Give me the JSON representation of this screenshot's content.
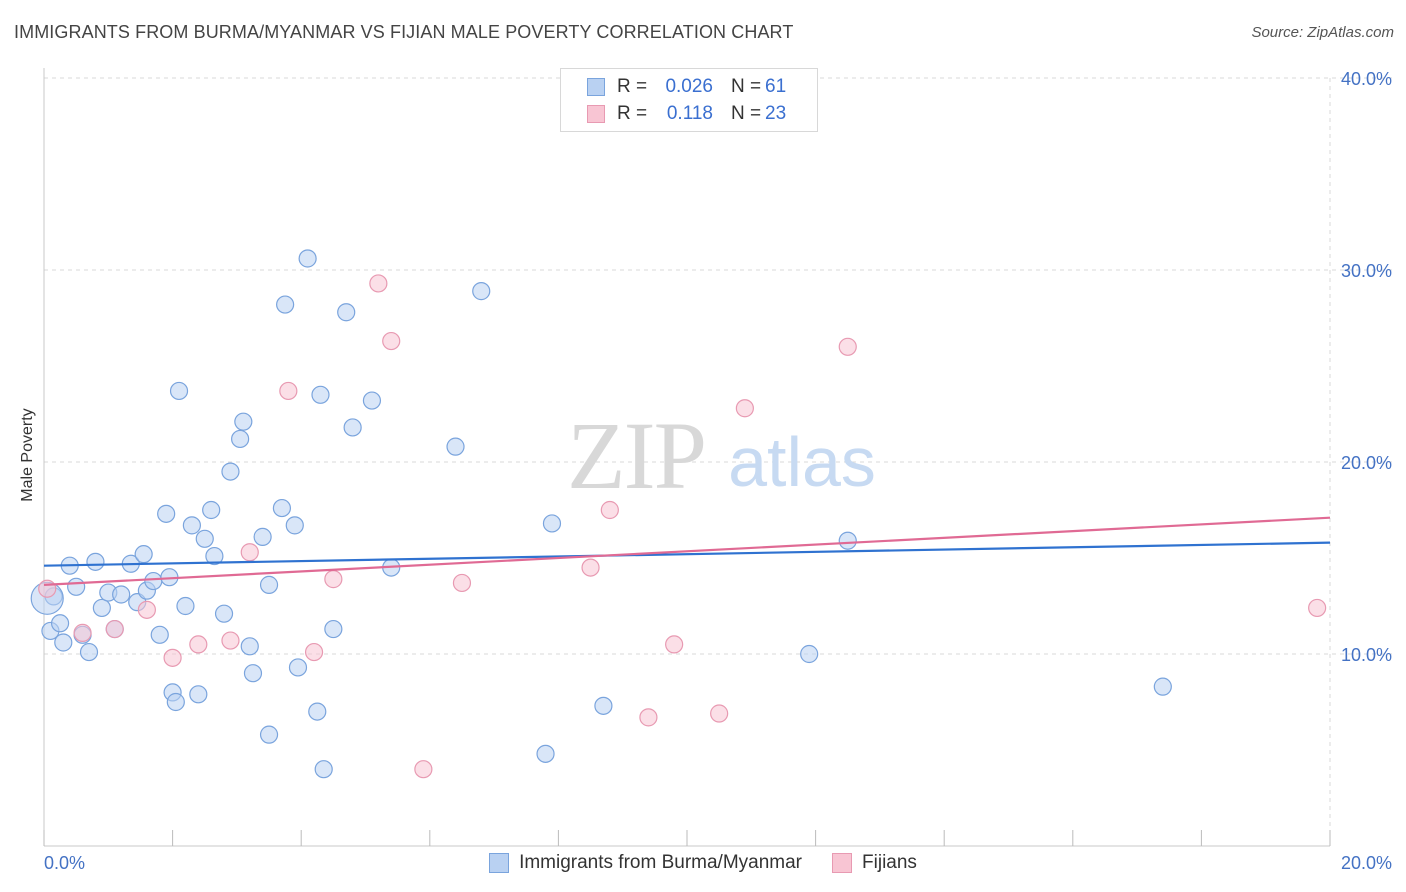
{
  "title": "IMMIGRANTS FROM BURMA/MYANMAR VS FIJIAN MALE POVERTY CORRELATION CHART",
  "source": "Source: ZipAtlas.com",
  "watermark": {
    "part1": "ZIP",
    "part2": "atlas"
  },
  "legend": {
    "rows": [
      {
        "r_label": "R =",
        "r_value": "0.026",
        "n_label": "N =",
        "n_value": "61"
      },
      {
        "r_label": "R =",
        "r_value": "0.118",
        "n_label": "N =",
        "n_value": "23"
      }
    ]
  },
  "bottom_legend": [
    {
      "label": "Immigrants from Burma/Myanmar"
    },
    {
      "label": "Fijians"
    }
  ],
  "colors": {
    "blue_fill": "#b9d1f2",
    "blue_stroke": "#7aa4dd",
    "blue_line": "#2f72d0",
    "pink_fill": "#f8c5d3",
    "pink_stroke": "#e89ab2",
    "pink_line": "#e06a94",
    "grid": "#d9d9d9",
    "axis_text": "#4472c4"
  },
  "chart_data": {
    "type": "scatter",
    "title": "IMMIGRANTS FROM BURMA/MYANMAR VS FIJIAN MALE POVERTY CORRELATION CHART",
    "xlabel": "",
    "ylabel": "Male Poverty",
    "xlim": [
      0,
      20
    ],
    "ylim": [
      0,
      40
    ],
    "x_tick_labels": [
      "0.0%",
      "20.0%"
    ],
    "y_ticks": [
      10,
      20,
      30,
      40
    ],
    "y_tick_labels": [
      "10.0%",
      "20.0%",
      "30.0%",
      "40.0%"
    ],
    "grid": true,
    "series": [
      {
        "name": "Immigrants from Burma/Myanmar",
        "color": "blue",
        "r": 0.026,
        "n": 61,
        "trend": {
          "x": [
            0,
            20
          ],
          "y": [
            14.6,
            15.8
          ]
        },
        "points": [
          [
            0.1,
            11.2
          ],
          [
            0.15,
            13.0
          ],
          [
            0.25,
            11.6
          ],
          [
            0.3,
            10.6
          ],
          [
            0.4,
            14.6
          ],
          [
            0.5,
            13.5
          ],
          [
            0.6,
            11.0
          ],
          [
            0.7,
            10.1
          ],
          [
            0.8,
            14.8
          ],
          [
            0.9,
            12.4
          ],
          [
            1.0,
            13.2
          ],
          [
            1.1,
            11.3
          ],
          [
            1.2,
            13.1
          ],
          [
            1.35,
            14.7
          ],
          [
            1.45,
            12.7
          ],
          [
            1.55,
            15.2
          ],
          [
            1.6,
            13.3
          ],
          [
            1.7,
            13.8
          ],
          [
            1.8,
            11.0
          ],
          [
            1.9,
            17.3
          ],
          [
            2.0,
            8.0
          ],
          [
            2.05,
            7.5
          ],
          [
            2.1,
            23.7
          ],
          [
            2.2,
            12.5
          ],
          [
            2.3,
            16.7
          ],
          [
            2.4,
            7.9
          ],
          [
            2.5,
            16.0
          ],
          [
            2.6,
            17.5
          ],
          [
            2.65,
            15.1
          ],
          [
            2.8,
            12.1
          ],
          [
            2.9,
            19.5
          ],
          [
            3.05,
            21.2
          ],
          [
            3.1,
            22.1
          ],
          [
            3.2,
            10.4
          ],
          [
            3.25,
            9.0
          ],
          [
            3.4,
            16.1
          ],
          [
            3.5,
            13.6
          ],
          [
            3.5,
            5.8
          ],
          [
            3.7,
            17.6
          ],
          [
            3.75,
            28.2
          ],
          [
            3.9,
            16.7
          ],
          [
            3.95,
            9.3
          ],
          [
            4.1,
            30.6
          ],
          [
            4.25,
            7.0
          ],
          [
            4.3,
            23.5
          ],
          [
            4.35,
            4.0
          ],
          [
            4.5,
            11.3
          ],
          [
            4.7,
            27.8
          ],
          [
            4.8,
            21.8
          ],
          [
            5.1,
            23.2
          ],
          [
            5.4,
            14.5
          ],
          [
            6.4,
            20.8
          ],
          [
            6.8,
            28.9
          ],
          [
            7.8,
            4.8
          ],
          [
            7.9,
            16.8
          ],
          [
            8.7,
            7.3
          ],
          [
            11.9,
            10.0
          ],
          [
            12.5,
            15.9
          ],
          [
            17.4,
            8.3
          ],
          [
            0.05,
            12.9
          ],
          [
            1.95,
            14.0
          ]
        ]
      },
      {
        "name": "Fijians",
        "color": "pink",
        "r": 0.118,
        "n": 23,
        "trend": {
          "x": [
            0,
            20
          ],
          "y": [
            13.6,
            17.1
          ]
        },
        "points": [
          [
            0.05,
            13.4
          ],
          [
            0.6,
            11.1
          ],
          [
            1.1,
            11.3
          ],
          [
            1.6,
            12.3
          ],
          [
            2.0,
            9.8
          ],
          [
            2.4,
            10.5
          ],
          [
            2.9,
            10.7
          ],
          [
            3.2,
            15.3
          ],
          [
            3.8,
            23.7
          ],
          [
            4.2,
            10.1
          ],
          [
            4.5,
            13.9
          ],
          [
            5.2,
            29.3
          ],
          [
            5.4,
            26.3
          ],
          [
            5.9,
            4.0
          ],
          [
            6.5,
            13.7
          ],
          [
            8.5,
            14.5
          ],
          [
            8.8,
            17.5
          ],
          [
            9.4,
            6.7
          ],
          [
            9.8,
            10.5
          ],
          [
            10.5,
            6.9
          ],
          [
            10.9,
            22.8
          ],
          [
            12.5,
            26.0
          ],
          [
            19.8,
            12.4
          ]
        ]
      }
    ]
  }
}
